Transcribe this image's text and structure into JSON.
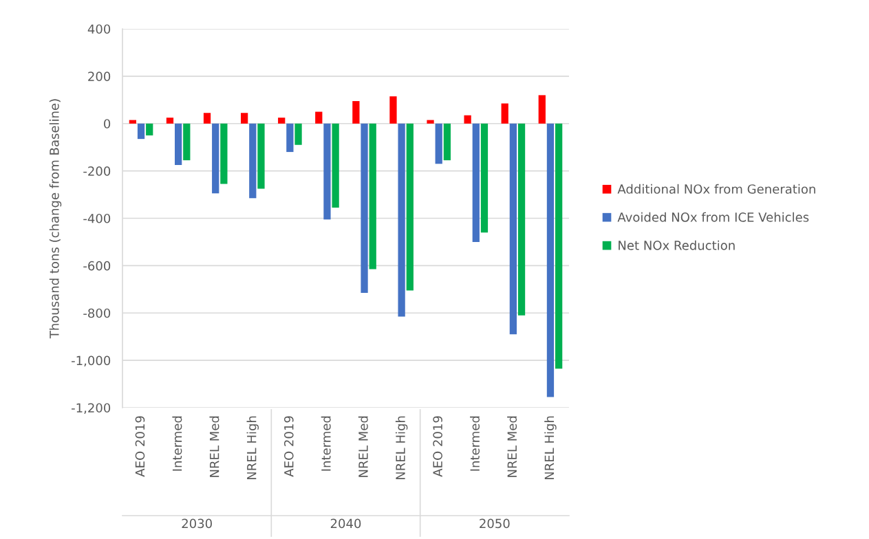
{
  "chart_data": {
    "type": "bar",
    "ylabel": "Thousand tons (change from Baseline)",
    "categories": [
      "AEO 2019",
      "Intermed",
      "NREL Med",
      "NREL High",
      "AEO 2019",
      "Intermed",
      "NREL Med",
      "NREL High",
      "AEO 2019",
      "Intermed",
      "NREL Med",
      "NREL High"
    ],
    "series": [
      {
        "name": "Additional NOx from Generation",
        "color": "#ff0000",
        "values": [
          15,
          25,
          45,
          45,
          25,
          50,
          95,
          115,
          15,
          35,
          85,
          120
        ]
      },
      {
        "name": "Avoided NOx from ICE Vehicles",
        "color": "#4472c4",
        "values": [
          -65,
          -175,
          -295,
          -315,
          -120,
          -405,
          -715,
          -815,
          -170,
          -500,
          -890,
          -1155
        ]
      },
      {
        "name": "Net NOx Reduction",
        "color": "#00b050",
        "values": [
          -50,
          -155,
          -255,
          -275,
          -90,
          -355,
          -615,
          -705,
          -155,
          -460,
          -810,
          -1035
        ]
      }
    ],
    "ylim": [
      -1200,
      400
    ],
    "yticks": [
      {
        "value": -1200,
        "label": "-1,200"
      },
      {
        "value": -1000,
        "label": "-1,000"
      },
      -800,
      -600,
      -400,
      -200,
      0,
      200,
      400
    ],
    "grid": "y",
    "legend": "right",
    "annotations": [
      "2030",
      "2040",
      "2050"
    ]
  }
}
